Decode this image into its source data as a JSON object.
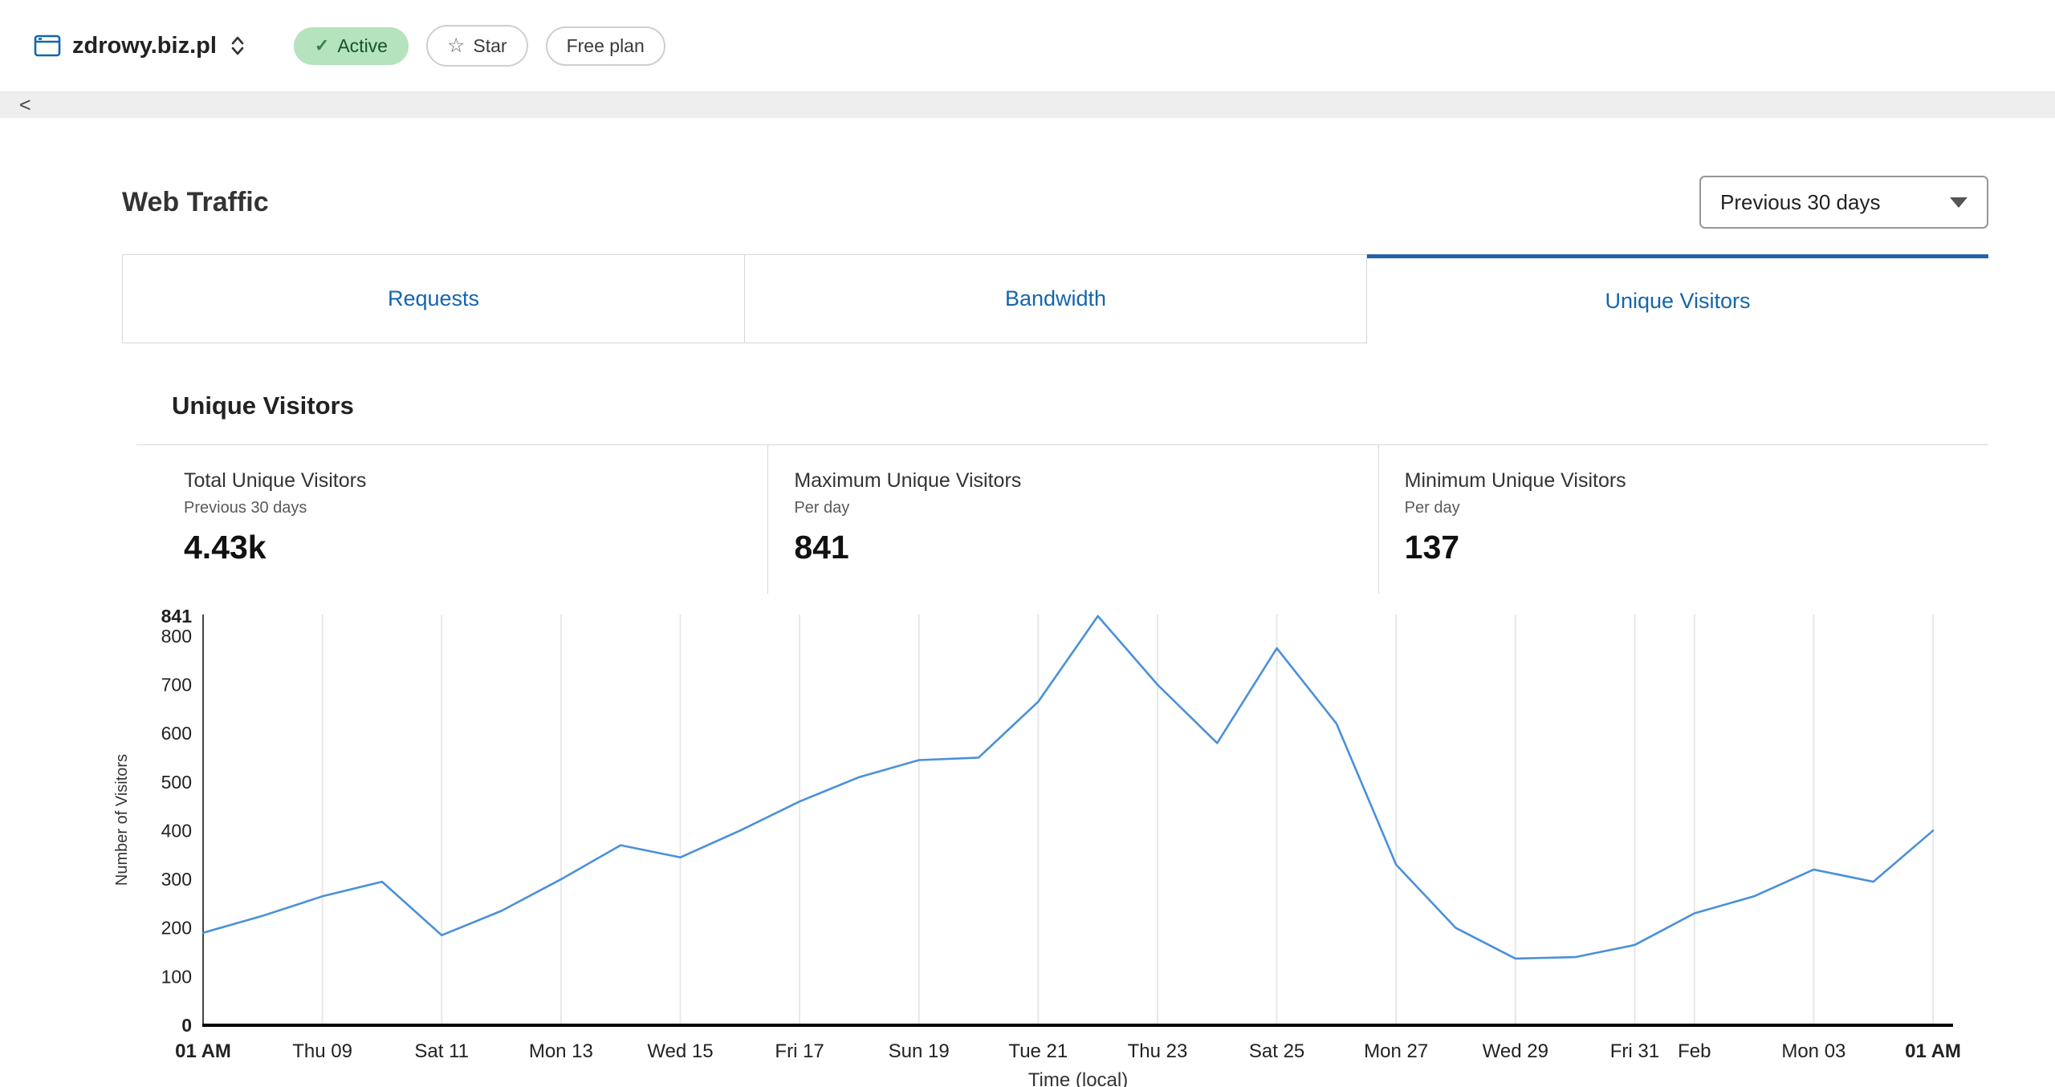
{
  "header": {
    "site_name": "zdrowy.biz.pl",
    "status_badge": {
      "label": "Active"
    },
    "star_button": {
      "label": "Star"
    },
    "plan_badge": {
      "label": "Free plan"
    }
  },
  "icons": {
    "check": "✓",
    "star": "☆",
    "collapse": "<"
  },
  "page": {
    "title": "Web Traffic",
    "range_dropdown": {
      "value": "Previous 30 days"
    }
  },
  "tabs": [
    {
      "label": "Requests",
      "active": false
    },
    {
      "label": "Bandwidth",
      "active": false
    },
    {
      "label": "Unique Visitors",
      "active": true
    }
  ],
  "section": {
    "title": "Unique Visitors",
    "stats": [
      {
        "title": "Total Unique Visitors",
        "subtitle": "Previous 30 days",
        "value": "4.43k"
      },
      {
        "title": "Maximum Unique Visitors",
        "subtitle": "Per day",
        "value": "841"
      },
      {
        "title": "Minimum Unique Visitors",
        "subtitle": "Per day",
        "value": "137"
      }
    ]
  },
  "chart_data": {
    "type": "line",
    "title": "Unique Visitors",
    "xlabel": "Time (local)",
    "ylabel": "Number of Visitors",
    "ylim": [
      0,
      841
    ],
    "grid": "vertical",
    "line_color": "#4a90d9",
    "axis_color": "#000000",
    "grid_color": "#e8e8e8",
    "y_ticks": [
      841,
      800,
      700,
      600,
      500,
      400,
      300,
      200,
      100,
      0
    ],
    "y_ticks_bold": [
      841,
      0
    ],
    "x_ticks": [
      {
        "i": 0,
        "label": "01 AM",
        "bold": true
      },
      {
        "i": 2,
        "label": "Thu 09"
      },
      {
        "i": 4,
        "label": "Sat 11"
      },
      {
        "i": 6,
        "label": "Mon 13"
      },
      {
        "i": 8,
        "label": "Wed 15"
      },
      {
        "i": 10,
        "label": "Fri 17"
      },
      {
        "i": 12,
        "label": "Sun 19"
      },
      {
        "i": 14,
        "label": "Tue 21"
      },
      {
        "i": 16,
        "label": "Thu 23"
      },
      {
        "i": 18,
        "label": "Sat 25"
      },
      {
        "i": 20,
        "label": "Mon 27"
      },
      {
        "i": 22,
        "label": "Wed 29"
      },
      {
        "i": 24,
        "label": "Fri 31"
      },
      {
        "i": 25,
        "label": "Feb"
      },
      {
        "i": 27,
        "label": "Mon 03"
      },
      {
        "i": 29,
        "label": "01 AM",
        "bold": true
      }
    ],
    "values": [
      190,
      225,
      265,
      295,
      185,
      235,
      300,
      370,
      345,
      400,
      460,
      510,
      545,
      550,
      665,
      841,
      700,
      580,
      775,
      620,
      330,
      200,
      137,
      140,
      165,
      230,
      265,
      320,
      295,
      400
    ]
  },
  "colors": {
    "link_blue": "#1565ad",
    "active_tab_bar": "#2263a8",
    "line_blue": "#4a90d9",
    "badge_green_bg": "#b4e3bd",
    "badge_green_text": "#18522b"
  }
}
